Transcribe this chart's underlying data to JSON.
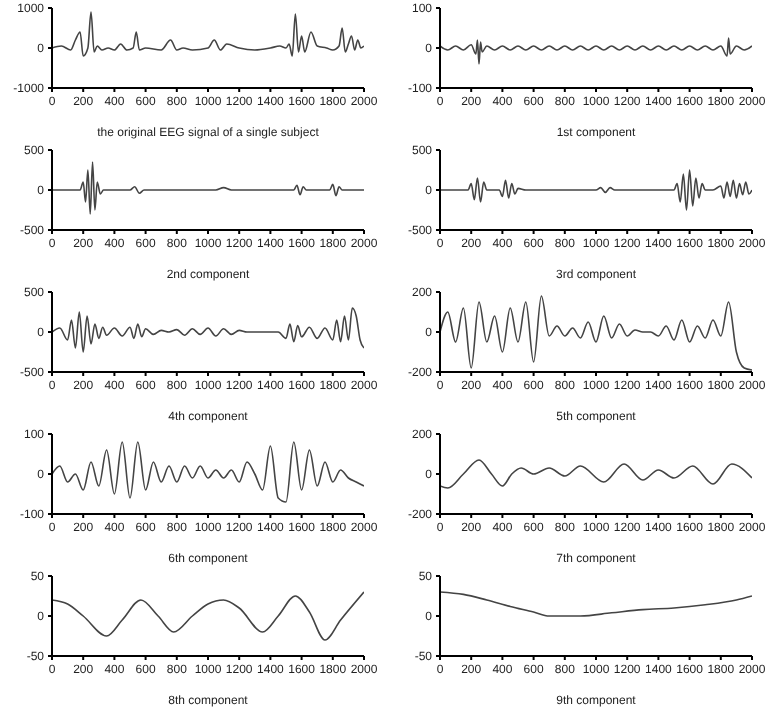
{
  "chart_data": [
    {
      "type": "line",
      "xlabel": "the original EEG signal of a single subject",
      "color": "#444444",
      "marker": "none",
      "xlim": [
        0,
        2000
      ],
      "xticks": [
        0,
        200,
        400,
        600,
        800,
        1000,
        1200,
        1400,
        1600,
        1800,
        2000
      ],
      "ylim": [
        -1000,
        1000
      ],
      "yticks": [
        -1000,
        0,
        1000
      ],
      "x": [
        0,
        60,
        120,
        150,
        180,
        200,
        230,
        250,
        270,
        290,
        320,
        360,
        400,
        440,
        480,
        520,
        540,
        560,
        600,
        700,
        760,
        800,
        840,
        900,
        1000,
        1040,
        1080,
        1120,
        1200,
        1300,
        1400,
        1460,
        1500,
        1520,
        1540,
        1560,
        1580,
        1600,
        1620,
        1660,
        1700,
        1760,
        1800,
        1840,
        1860,
        1880,
        1900,
        1920,
        1940,
        1960,
        1980,
        2000
      ],
      "values": [
        0,
        50,
        -50,
        200,
        400,
        -200,
        0,
        900,
        -100,
        50,
        -50,
        0,
        -50,
        100,
        -50,
        0,
        400,
        -50,
        0,
        -50,
        200,
        -50,
        0,
        -50,
        0,
        200,
        -50,
        100,
        0,
        -50,
        0,
        50,
        0,
        100,
        -200,
        850,
        -100,
        300,
        -100,
        400,
        50,
        0,
        -50,
        50,
        500,
        -100,
        100,
        300,
        -50,
        200,
        0,
        50
      ]
    },
    {
      "type": "line",
      "xlabel": "1st component",
      "color": "#444444",
      "marker": "none",
      "xlim": [
        0,
        2000
      ],
      "xticks": [
        0,
        200,
        400,
        600,
        800,
        1000,
        1200,
        1400,
        1600,
        1800,
        2000
      ],
      "ylim": [
        -100,
        100
      ],
      "yticks": [
        -100,
        0,
        100
      ],
      "x": [
        0,
        50,
        100,
        150,
        200,
        230,
        240,
        250,
        260,
        270,
        300,
        350,
        400,
        450,
        500,
        550,
        600,
        650,
        700,
        750,
        800,
        850,
        900,
        950,
        1000,
        1050,
        1100,
        1150,
        1200,
        1250,
        1300,
        1350,
        1400,
        1450,
        1500,
        1550,
        1600,
        1650,
        1700,
        1750,
        1800,
        1840,
        1850,
        1860,
        1900,
        1950,
        2000
      ],
      "values": [
        5,
        -5,
        5,
        -5,
        8,
        -15,
        20,
        -40,
        15,
        -10,
        5,
        -5,
        5,
        -5,
        5,
        -5,
        5,
        -5,
        5,
        -5,
        5,
        -5,
        5,
        -5,
        5,
        -5,
        5,
        -5,
        5,
        -5,
        5,
        -5,
        5,
        -5,
        5,
        -5,
        5,
        -5,
        5,
        -5,
        5,
        -20,
        25,
        -15,
        5,
        -5,
        5
      ]
    },
    {
      "type": "line",
      "xlabel": "2nd component",
      "color": "#444444",
      "marker": "none",
      "xlim": [
        0,
        2000
      ],
      "xticks": [
        0,
        200,
        400,
        600,
        800,
        1000,
        1200,
        1400,
        1600,
        1800,
        2000
      ],
      "ylim": [
        -500,
        500
      ],
      "yticks": [
        -500,
        0,
        500
      ],
      "x": [
        0,
        180,
        200,
        215,
        230,
        245,
        260,
        275,
        290,
        310,
        330,
        500,
        530,
        560,
        590,
        1050,
        1100,
        1150,
        1550,
        1570,
        1590,
        1610,
        1630,
        1780,
        1800,
        1820,
        1840,
        1860,
        2000
      ],
      "values": [
        0,
        0,
        100,
        -150,
        250,
        -300,
        350,
        -250,
        100,
        -50,
        0,
        0,
        40,
        -40,
        0,
        0,
        30,
        0,
        0,
        60,
        -60,
        40,
        0,
        0,
        70,
        -70,
        40,
        0,
        0
      ]
    },
    {
      "type": "line",
      "xlabel": "3rd component",
      "color": "#444444",
      "marker": "none",
      "xlim": [
        0,
        2000
      ],
      "xticks": [
        0,
        200,
        400,
        600,
        800,
        1000,
        1200,
        1400,
        1600,
        1800,
        2000
      ],
      "ylim": [
        -500,
        500
      ],
      "yticks": [
        -500,
        0,
        500
      ],
      "x": [
        0,
        180,
        200,
        220,
        240,
        260,
        280,
        300,
        380,
        400,
        420,
        440,
        460,
        480,
        500,
        550,
        1000,
        1030,
        1060,
        1090,
        1120,
        1500,
        1520,
        1540,
        1560,
        1580,
        1600,
        1620,
        1640,
        1660,
        1680,
        1700,
        1750,
        1800,
        1820,
        1840,
        1860,
        1880,
        1900,
        1920,
        1940,
        1960,
        1980,
        2000
      ],
      "values": [
        0,
        0,
        80,
        -120,
        150,
        -150,
        100,
        0,
        0,
        -80,
        120,
        -100,
        80,
        -50,
        20,
        0,
        0,
        30,
        -30,
        30,
        0,
        0,
        80,
        -150,
        200,
        -250,
        250,
        -200,
        150,
        -100,
        80,
        0,
        0,
        50,
        -100,
        100,
        -80,
        120,
        -100,
        80,
        -60,
        100,
        -50,
        0
      ]
    },
    {
      "type": "line",
      "xlabel": "4th component",
      "color": "#444444",
      "marker": "none",
      "xlim": [
        0,
        2000
      ],
      "xticks": [
        0,
        200,
        400,
        600,
        800,
        1000,
        1200,
        1400,
        1600,
        1800,
        2000
      ],
      "ylim": [
        -500,
        500
      ],
      "yticks": [
        -500,
        0,
        500
      ],
      "x": [
        0,
        50,
        100,
        125,
        150,
        175,
        200,
        225,
        250,
        275,
        300,
        325,
        350,
        400,
        450,
        500,
        525,
        550,
        575,
        600,
        650,
        700,
        750,
        800,
        850,
        900,
        950,
        1000,
        1050,
        1100,
        1150,
        1200,
        1250,
        1300,
        1350,
        1450,
        1500,
        1525,
        1550,
        1575,
        1600,
        1650,
        1700,
        1750,
        1800,
        1825,
        1850,
        1875,
        1900,
        1925,
        1950,
        1975,
        2000
      ],
      "values": [
        0,
        50,
        -100,
        150,
        -200,
        250,
        -250,
        200,
        -150,
        100,
        -80,
        60,
        -40,
        50,
        -50,
        60,
        -80,
        100,
        -60,
        40,
        -30,
        20,
        0,
        30,
        -40,
        40,
        -30,
        50,
        -50,
        40,
        -30,
        20,
        0,
        0,
        0,
        0,
        -80,
        100,
        -120,
        80,
        -60,
        60,
        -80,
        50,
        -100,
        150,
        -120,
        200,
        -100,
        300,
        200,
        -100,
        -200
      ]
    },
    {
      "type": "line",
      "xlabel": "5th component",
      "color": "#444444",
      "marker": "none",
      "xlim": [
        0,
        2000
      ],
      "xticks": [
        0,
        200,
        400,
        600,
        800,
        1000,
        1200,
        1400,
        1600,
        1800,
        2000
      ],
      "ylim": [
        -200,
        200
      ],
      "yticks": [
        -200,
        0,
        200
      ],
      "x": [
        0,
        50,
        100,
        150,
        200,
        250,
        300,
        350,
        400,
        450,
        500,
        550,
        600,
        650,
        700,
        750,
        800,
        850,
        900,
        950,
        1000,
        1050,
        1100,
        1150,
        1200,
        1250,
        1300,
        1350,
        1400,
        1450,
        1500,
        1550,
        1600,
        1650,
        1700,
        1750,
        1800,
        1850,
        1900,
        1950,
        2000
      ],
      "values": [
        0,
        100,
        -50,
        120,
        -180,
        150,
        -50,
        80,
        -100,
        120,
        -50,
        150,
        -150,
        180,
        -20,
        30,
        -20,
        20,
        -30,
        50,
        -50,
        80,
        -30,
        40,
        -20,
        10,
        0,
        0,
        -20,
        30,
        -40,
        60,
        -50,
        30,
        -30,
        60,
        -20,
        150,
        -100,
        -180,
        -190
      ]
    },
    {
      "type": "line",
      "xlabel": "6th component",
      "color": "#444444",
      "marker": "none",
      "xlim": [
        0,
        2000
      ],
      "xticks": [
        0,
        200,
        400,
        600,
        800,
        1000,
        1200,
        1400,
        1600,
        1800,
        2000
      ],
      "ylim": [
        -100,
        100
      ],
      "yticks": [
        -100,
        0,
        100
      ],
      "x": [
        0,
        50,
        100,
        150,
        200,
        250,
        300,
        350,
        400,
        450,
        500,
        550,
        600,
        650,
        700,
        750,
        800,
        850,
        900,
        950,
        1000,
        1050,
        1100,
        1150,
        1200,
        1250,
        1300,
        1350,
        1400,
        1450,
        1500,
        1550,
        1600,
        1650,
        1700,
        1750,
        1800,
        1850,
        1900,
        1950,
        2000
      ],
      "values": [
        0,
        20,
        -20,
        0,
        -40,
        30,
        -30,
        60,
        -50,
        80,
        -60,
        80,
        -40,
        30,
        -20,
        20,
        -20,
        20,
        -10,
        20,
        -10,
        10,
        -10,
        10,
        -20,
        30,
        0,
        -40,
        70,
        -60,
        -70,
        80,
        -40,
        60,
        -30,
        30,
        -20,
        10,
        -10,
        -20,
        -30
      ]
    },
    {
      "type": "line",
      "xlabel": "7th component",
      "color": "#444444",
      "marker": "none",
      "xlim": [
        0,
        2000
      ],
      "xticks": [
        0,
        200,
        400,
        600,
        800,
        1000,
        1200,
        1400,
        1600,
        1800,
        2000
      ],
      "ylim": [
        -200,
        200
      ],
      "yticks": [
        -200,
        0,
        200
      ],
      "x": [
        0,
        50,
        150,
        250,
        330,
        400,
        460,
        520,
        600,
        700,
        800,
        900,
        1050,
        1180,
        1300,
        1400,
        1500,
        1620,
        1750,
        1870,
        2000
      ],
      "values": [
        -60,
        -70,
        0,
        70,
        0,
        -60,
        0,
        30,
        0,
        30,
        -10,
        40,
        -40,
        50,
        -30,
        20,
        -20,
        40,
        -50,
        50,
        -20
      ]
    },
    {
      "type": "line",
      "xlabel": "8th component",
      "color": "#444444",
      "marker": "none",
      "xlim": [
        0,
        2000
      ],
      "xticks": [
        0,
        200,
        400,
        600,
        800,
        1000,
        1200,
        1400,
        1600,
        1800,
        2000
      ],
      "ylim": [
        -50,
        50
      ],
      "yticks": [
        -50,
        0,
        50
      ],
      "x": [
        0,
        100,
        200,
        350,
        450,
        570,
        680,
        780,
        900,
        1000,
        1100,
        1200,
        1350,
        1450,
        1560,
        1650,
        1750,
        1850,
        2000
      ],
      "values": [
        20,
        15,
        0,
        -25,
        -5,
        20,
        0,
        -20,
        0,
        15,
        20,
        10,
        -20,
        0,
        25,
        5,
        -30,
        -5,
        30
      ]
    },
    {
      "type": "line",
      "xlabel": "9th component",
      "color": "#444444",
      "marker": "none",
      "xlim": [
        0,
        2000
      ],
      "xticks": [
        0,
        200,
        400,
        600,
        800,
        1000,
        1200,
        1400,
        1600,
        1800,
        2000
      ],
      "ylim": [
        -50,
        50
      ],
      "yticks": [
        -50,
        0,
        50
      ],
      "x": [
        0,
        150,
        300,
        450,
        600,
        700,
        900,
        1100,
        1300,
        1500,
        1700,
        1900,
        2000
      ],
      "values": [
        30,
        27,
        20,
        12,
        5,
        0,
        0,
        4,
        8,
        10,
        14,
        20,
        25
      ]
    }
  ]
}
